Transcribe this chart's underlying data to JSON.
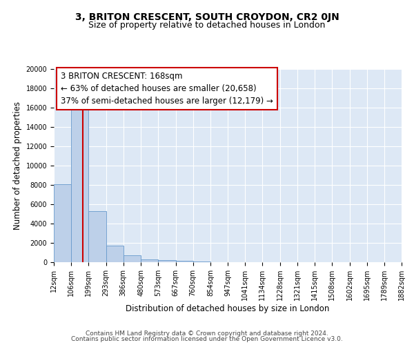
{
  "title": "3, BRITON CRESCENT, SOUTH CROYDON, CR2 0JN",
  "subtitle": "Size of property relative to detached houses in London",
  "xlabel": "Distribution of detached houses by size in London",
  "ylabel": "Number of detached properties",
  "bin_edges": [
    12,
    106,
    199,
    293,
    386,
    480,
    573,
    667,
    760,
    854,
    947,
    1041,
    1134,
    1228,
    1321,
    1415,
    1508,
    1602,
    1695,
    1789,
    1882
  ],
  "bin_labels": [
    "12sqm",
    "106sqm",
    "199sqm",
    "293sqm",
    "386sqm",
    "480sqm",
    "573sqm",
    "667sqm",
    "760sqm",
    "854sqm",
    "947sqm",
    "1041sqm",
    "1134sqm",
    "1228sqm",
    "1321sqm",
    "1415sqm",
    "1508sqm",
    "1602sqm",
    "1695sqm",
    "1789sqm",
    "1882sqm"
  ],
  "bar_heights": [
    8100,
    16600,
    5300,
    1750,
    750,
    300,
    220,
    150,
    80,
    0,
    0,
    0,
    0,
    0,
    0,
    0,
    0,
    0,
    0,
    0
  ],
  "bar_color": "#bdd0e9",
  "bar_edge_color": "#6699cc",
  "background_color": "#dde8f5",
  "grid_color": "#ffffff",
  "property_size": 168,
  "vline_color": "#cc0000",
  "annotation_line1": "3 BRITON CRESCENT: 168sqm",
  "annotation_line2": "← 63% of detached houses are smaller (20,658)",
  "annotation_line3": "37% of semi-detached houses are larger (12,179) →",
  "annotation_box_color": "#ffffff",
  "annotation_box_edge": "#cc0000",
  "ylim": [
    0,
    20000
  ],
  "yticks": [
    0,
    2000,
    4000,
    6000,
    8000,
    10000,
    12000,
    14000,
    16000,
    18000,
    20000
  ],
  "footer_line1": "Contains HM Land Registry data © Crown copyright and database right 2024.",
  "footer_line2": "Contains public sector information licensed under the Open Government Licence v3.0.",
  "title_fontsize": 10,
  "subtitle_fontsize": 9,
  "tick_fontsize": 7,
  "ylabel_fontsize": 8.5,
  "xlabel_fontsize": 8.5,
  "annotation_fontsize": 8.5,
  "footer_fontsize": 6.5
}
